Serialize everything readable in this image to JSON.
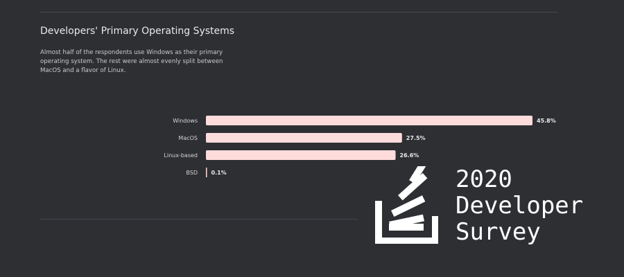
{
  "chart_data": {
    "type": "bar",
    "orientation": "horizontal",
    "title": "Developers' Primary Operating Systems",
    "subtitle": "Almost half of the respondents use Windows as their primary operating system. The rest were almost evenly split between MacOS and a flavor of Linux.",
    "categories": [
      "Windows",
      "MacOS",
      "Linux-based",
      "BSD"
    ],
    "values": [
      45.8,
      27.5,
      26.6,
      0.1
    ],
    "value_labels": [
      "45.8%",
      "27.5%",
      "26.6%",
      "0.1%"
    ],
    "xlabel": "",
    "ylabel": "",
    "xlim": [
      0,
      45.8
    ],
    "grid": false,
    "bar_color": "#fedcdc"
  },
  "logo": {
    "line1": "2020",
    "line2": "Developer",
    "line3": "Survey",
    "color": "#ffffff"
  },
  "colors": {
    "background": "#2d2f33",
    "text": "#e8e9eb",
    "bar": "#fedcdc"
  }
}
